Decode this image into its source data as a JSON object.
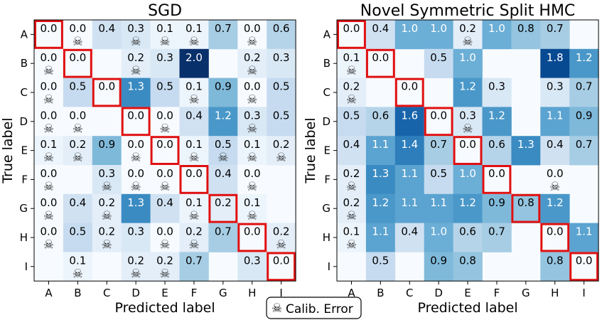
{
  "legend": {
    "icon": "skull-icon",
    "label": "Calib. Error"
  },
  "chart_data": [
    {
      "type": "heatmap",
      "title": "SGD",
      "xlabel": "Predicted label",
      "ylabel": "True label",
      "x_categories": [
        "A",
        "B",
        "C",
        "D",
        "E",
        "F",
        "G",
        "H",
        "I"
      ],
      "y_categories": [
        "A",
        "B",
        "C",
        "D",
        "E",
        "F",
        "G",
        "H",
        "I"
      ],
      "colormap": "Blues",
      "vmax": 2.0,
      "diagonal_outline_color": "#e01010",
      "cells": [
        [
          {
            "v": 0.0,
            "s": false
          },
          {
            "v": 0.0,
            "s": true
          },
          {
            "v": 0.4,
            "s": false
          },
          {
            "v": 0.3,
            "s": true
          },
          {
            "v": 0.1,
            "s": true
          },
          {
            "v": 0.1,
            "s": true
          },
          {
            "v": 0.7,
            "s": false
          },
          {
            "v": 0.0,
            "s": true
          },
          {
            "v": 0.6,
            "s": false
          }
        ],
        [
          {
            "v": 0.0,
            "s": true
          },
          {
            "v": 0.0,
            "s": false
          },
          null,
          {
            "v": 0.2,
            "s": true
          },
          {
            "v": 0.3,
            "s": false
          },
          {
            "v": 2.0,
            "s": false
          },
          null,
          {
            "v": 0.2,
            "s": true
          },
          {
            "v": 0.3,
            "s": false
          }
        ],
        [
          {
            "v": 0.0,
            "s": true
          },
          {
            "v": 0.5,
            "s": false
          },
          {
            "v": 0.0,
            "s": false
          },
          {
            "v": 1.3,
            "s": false
          },
          {
            "v": 0.5,
            "s": false
          },
          {
            "v": 0.1,
            "s": true
          },
          {
            "v": 0.9,
            "s": false
          },
          {
            "v": 0.0,
            "s": true
          },
          {
            "v": 0.5,
            "s": false
          }
        ],
        [
          {
            "v": 0.0,
            "s": true
          },
          {
            "v": 0.0,
            "s": true
          },
          null,
          {
            "v": 0.0,
            "s": false
          },
          {
            "v": 0.0,
            "s": true
          },
          {
            "v": 0.4,
            "s": false
          },
          {
            "v": 1.2,
            "s": false
          },
          {
            "v": 0.3,
            "s": true
          },
          {
            "v": 0.5,
            "s": false
          }
        ],
        [
          {
            "v": 0.1,
            "s": true
          },
          {
            "v": 0.2,
            "s": true
          },
          {
            "v": 0.9,
            "s": false
          },
          {
            "v": 0.0,
            "s": true
          },
          {
            "v": 0.0,
            "s": false
          },
          {
            "v": 0.1,
            "s": true
          },
          {
            "v": 0.5,
            "s": true
          },
          {
            "v": 0.1,
            "s": true
          },
          {
            "v": 0.2,
            "s": true
          }
        ],
        [
          {
            "v": 0.0,
            "s": true
          },
          null,
          {
            "v": 0.3,
            "s": true
          },
          {
            "v": 0.0,
            "s": true
          },
          {
            "v": 0.0,
            "s": true
          },
          {
            "v": 0.0,
            "s": false
          },
          {
            "v": 0.4,
            "s": false
          },
          {
            "v": 0.0,
            "s": true
          },
          null
        ],
        [
          {
            "v": 0.0,
            "s": true
          },
          {
            "v": 0.4,
            "s": false
          },
          {
            "v": 0.2,
            "s": true
          },
          {
            "v": 1.3,
            "s": false
          },
          {
            "v": 0.4,
            "s": false
          },
          {
            "v": 0.1,
            "s": true
          },
          {
            "v": 0.2,
            "s": false
          },
          {
            "v": 0.1,
            "s": true
          },
          null
        ],
        [
          {
            "v": 0.0,
            "s": true
          },
          {
            "v": 0.5,
            "s": false
          },
          {
            "v": 0.2,
            "s": true
          },
          {
            "v": 0.3,
            "s": false
          },
          {
            "v": 0.0,
            "s": true
          },
          {
            "v": 0.2,
            "s": true
          },
          {
            "v": 0.7,
            "s": false
          },
          {
            "v": 0.0,
            "s": false
          },
          {
            "v": 0.2,
            "s": true
          }
        ],
        [
          null,
          {
            "v": 0.1,
            "s": true
          },
          null,
          {
            "v": 0.2,
            "s": true
          },
          {
            "v": 0.2,
            "s": true
          },
          {
            "v": 0.7,
            "s": false
          },
          null,
          {
            "v": 0.3,
            "s": false
          },
          {
            "v": 0.0,
            "s": false
          }
        ]
      ]
    },
    {
      "type": "heatmap",
      "title": "Novel Symmetric Split HMC",
      "xlabel": "Predicted label",
      "ylabel": "True label",
      "x_categories": [
        "A",
        "B",
        "C",
        "D",
        "E",
        "F",
        "G",
        "H",
        "I"
      ],
      "y_categories": [
        "A",
        "B",
        "C",
        "D",
        "E",
        "F",
        "G",
        "H",
        "I"
      ],
      "colormap": "Blues",
      "vmax": 2.0,
      "diagonal_outline_color": "#e01010",
      "cells": [
        [
          {
            "v": 0.0,
            "s": false
          },
          {
            "v": 0.4,
            "s": false
          },
          {
            "v": 1.0,
            "s": false
          },
          {
            "v": 1.0,
            "s": false
          },
          {
            "v": 0.2,
            "s": true
          },
          {
            "v": 1.0,
            "s": false
          },
          {
            "v": 0.8,
            "s": false
          },
          {
            "v": 0.7,
            "s": false
          },
          null
        ],
        [
          {
            "v": 0.1,
            "s": true
          },
          {
            "v": 0.0,
            "s": false
          },
          null,
          {
            "v": 0.5,
            "s": false
          },
          {
            "v": 1.0,
            "s": false
          },
          null,
          null,
          {
            "v": 1.8,
            "s": false
          },
          {
            "v": 1.2,
            "s": false
          }
        ],
        [
          {
            "v": 0.2,
            "s": true
          },
          null,
          {
            "v": 0.0,
            "s": false
          },
          null,
          {
            "v": 1.2,
            "s": false
          },
          {
            "v": 0.3,
            "s": false
          },
          null,
          {
            "v": 0.3,
            "s": false
          },
          {
            "v": 0.7,
            "s": false
          }
        ],
        [
          {
            "v": 0.5,
            "s": false
          },
          {
            "v": 0.6,
            "s": false
          },
          {
            "v": 1.6,
            "s": false
          },
          {
            "v": 0.0,
            "s": false
          },
          {
            "v": 0.3,
            "s": true
          },
          {
            "v": 1.2,
            "s": false
          },
          null,
          {
            "v": 1.1,
            "s": false
          },
          {
            "v": 0.9,
            "s": false
          }
        ],
        [
          {
            "v": 0.4,
            "s": false
          },
          {
            "v": 1.1,
            "s": false
          },
          {
            "v": 1.4,
            "s": false
          },
          {
            "v": 0.7,
            "s": false
          },
          {
            "v": 0.0,
            "s": false
          },
          {
            "v": 0.6,
            "s": false
          },
          {
            "v": 1.3,
            "s": false
          },
          {
            "v": 0.4,
            "s": false
          },
          {
            "v": 0.7,
            "s": false
          }
        ],
        [
          {
            "v": 0.2,
            "s": true
          },
          {
            "v": 1.3,
            "s": false
          },
          {
            "v": 1.1,
            "s": false
          },
          {
            "v": 0.5,
            "s": false
          },
          {
            "v": 1.0,
            "s": false
          },
          {
            "v": 0.0,
            "s": false
          },
          null,
          {
            "v": 0.0,
            "s": true
          },
          null
        ],
        [
          {
            "v": 0.2,
            "s": true
          },
          {
            "v": 1.2,
            "s": false
          },
          {
            "v": 1.1,
            "s": false
          },
          {
            "v": 1.1,
            "s": false
          },
          {
            "v": 1.2,
            "s": false
          },
          {
            "v": 0.9,
            "s": false
          },
          {
            "v": 0.8,
            "s": false
          },
          {
            "v": 1.2,
            "s": false
          },
          null
        ],
        [
          {
            "v": 0.1,
            "s": true
          },
          {
            "v": 1.1,
            "s": false
          },
          {
            "v": 0.4,
            "s": false
          },
          {
            "v": 1.0,
            "s": false
          },
          {
            "v": 0.6,
            "s": false
          },
          {
            "v": 0.7,
            "s": false
          },
          null,
          {
            "v": 0.0,
            "s": false
          },
          {
            "v": 1.1,
            "s": false
          }
        ],
        [
          null,
          {
            "v": 0.5,
            "s": false
          },
          null,
          {
            "v": 0.9,
            "s": false
          },
          {
            "v": 0.8,
            "s": false
          },
          null,
          null,
          {
            "v": 0.8,
            "s": false
          },
          {
            "v": 0.0,
            "s": false
          }
        ]
      ]
    }
  ]
}
